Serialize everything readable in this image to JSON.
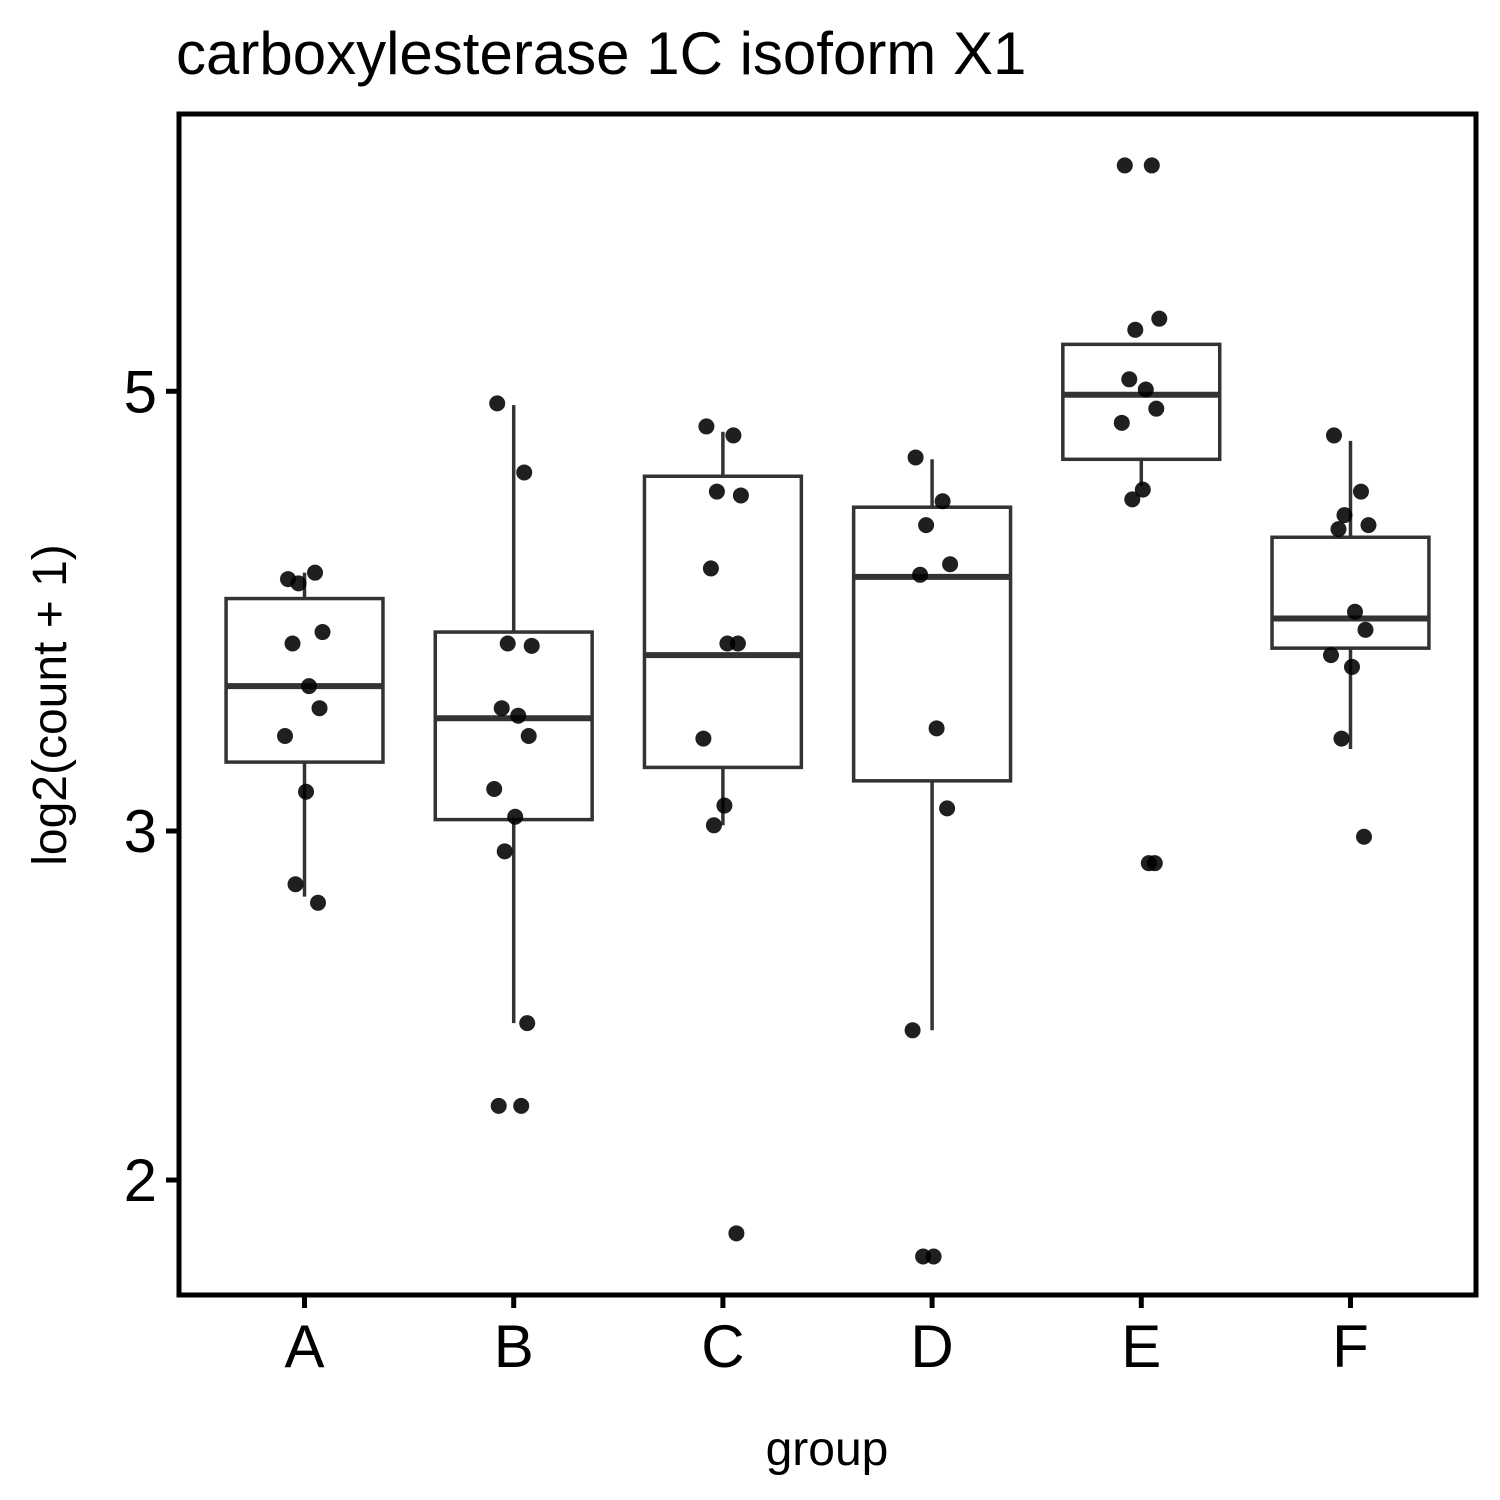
{
  "chart_data": {
    "type": "box",
    "title": "carboxylesterase 1C isoform X1",
    "xlabel": "group",
    "ylabel": "log2(count + 1)",
    "y_scale": "log2",
    "ylim": [
      1.75,
      6.9
    ],
    "y_ticks": [
      2,
      3,
      5
    ],
    "grid": false,
    "categories": [
      "A",
      "B",
      "C",
      "D",
      "E",
      "F"
    ],
    "boxes": [
      {
        "name": "A",
        "whisker_low": 2.78,
        "q1": 3.25,
        "median": 3.55,
        "q3": 3.93,
        "whisker_high": 4.05
      },
      {
        "name": "B",
        "whisker_low": 2.4,
        "q1": 3.04,
        "median": 3.42,
        "q3": 3.78,
        "whisker_high": 4.92
      },
      {
        "name": "C",
        "whisker_low": 3.02,
        "q1": 3.23,
        "median": 3.68,
        "q3": 4.53,
        "whisker_high": 4.77
      },
      {
        "name": "D",
        "whisker_low": 2.38,
        "q1": 3.18,
        "median": 4.03,
        "q3": 4.37,
        "whisker_high": 4.62
      },
      {
        "name": "E",
        "whisker_low": 4.48,
        "q1": 4.62,
        "median": 4.98,
        "q3": 5.28,
        "whisker_high": 5.28
      },
      {
        "name": "F",
        "whisker_low": 3.3,
        "q1": 3.71,
        "median": 3.84,
        "q3": 4.22,
        "whisker_high": 4.72
      }
    ],
    "points": [
      {
        "name": "A",
        "values": [
          4.02,
          4.05,
          4.0,
          3.78,
          3.73,
          3.55,
          3.46,
          3.35,
          3.14,
          2.82,
          2.76
        ]
      },
      {
        "name": "B",
        "values": [
          4.93,
          4.55,
          3.73,
          3.72,
          3.46,
          3.43,
          3.35,
          3.15,
          3.05,
          2.93,
          2.4,
          2.18,
          2.18
        ]
      },
      {
        "name": "C",
        "values": [
          4.8,
          4.75,
          4.45,
          4.43,
          4.07,
          3.73,
          3.73,
          3.34,
          3.09,
          3.02,
          1.88
        ]
      },
      {
        "name": "D",
        "values": [
          4.63,
          4.4,
          4.28,
          4.09,
          4.04,
          3.38,
          3.08,
          2.38,
          1.83,
          1.83
        ]
      },
      {
        "name": "E",
        "values": [
          6.5,
          6.5,
          5.37,
          5.44,
          5.07,
          5.01,
          4.9,
          4.82,
          4.46,
          4.41,
          2.89,
          2.89
        ]
      },
      {
        "name": "F",
        "values": [
          4.75,
          4.45,
          4.33,
          4.28,
          4.26,
          3.87,
          3.79,
          3.68,
          3.63,
          3.34,
          2.98
        ]
      }
    ]
  }
}
